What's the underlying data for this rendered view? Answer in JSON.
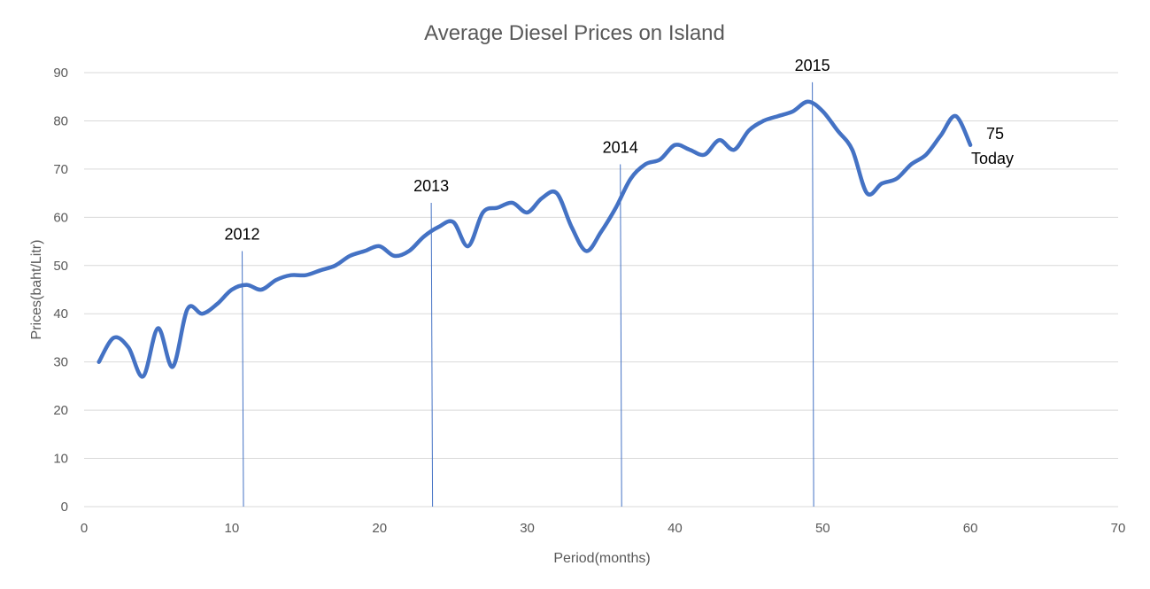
{
  "chart_data": {
    "type": "scatter",
    "title": "Average Diesel Prices on Island",
    "xlabel": "Period(months)",
    "ylabel": "Prices(baht/Litr)",
    "xlim": [
      0,
      70
    ],
    "ylim": [
      0,
      90
    ],
    "xticks": [
      0,
      10,
      20,
      30,
      40,
      50,
      60,
      70
    ],
    "yticks": [
      0,
      10,
      20,
      30,
      40,
      50,
      60,
      70,
      80,
      90
    ],
    "grid": "horizontal",
    "legend": "none",
    "series": [
      {
        "color": "#4472c4",
        "style": "smooth-line",
        "x": [
          1,
          2,
          3,
          4,
          5,
          6,
          7,
          8,
          9,
          10,
          11,
          12,
          13,
          14,
          15,
          16,
          17,
          18,
          19,
          20,
          21,
          22,
          23,
          24,
          25,
          26,
          27,
          28,
          29,
          30,
          31,
          32,
          33,
          34,
          35,
          36,
          37,
          38,
          39,
          40,
          41,
          42,
          43,
          44,
          45,
          46,
          47,
          48,
          49,
          50,
          51,
          52,
          53,
          54,
          55,
          56,
          57,
          58,
          59,
          60
        ],
        "y": [
          30,
          35,
          33,
          27,
          37,
          29,
          41,
          40,
          42,
          45,
          46,
          45,
          47,
          48,
          48,
          49,
          50,
          52,
          53,
          54,
          52,
          53,
          56,
          58,
          59,
          54,
          61,
          62,
          63,
          61,
          64,
          65,
          58,
          53,
          57,
          62,
          68,
          71,
          72,
          75,
          74,
          73,
          76,
          74,
          78,
          80,
          81,
          82,
          84,
          82,
          78,
          74,
          65,
          67,
          68,
          71,
          73,
          77,
          81,
          75
        ]
      }
    ],
    "markers": [
      {
        "label": "2012",
        "x": 10.7,
        "y_top": 53
      },
      {
        "label": "2013",
        "x": 23.5,
        "y_top": 63
      },
      {
        "label": "2014",
        "x": 36.3,
        "y_top": 71
      },
      {
        "label": "2015",
        "x": 49.3,
        "y_top": 88
      }
    ],
    "marker_color": "#4472c4",
    "end_annotation": {
      "value": "75",
      "text": "Today"
    }
  }
}
